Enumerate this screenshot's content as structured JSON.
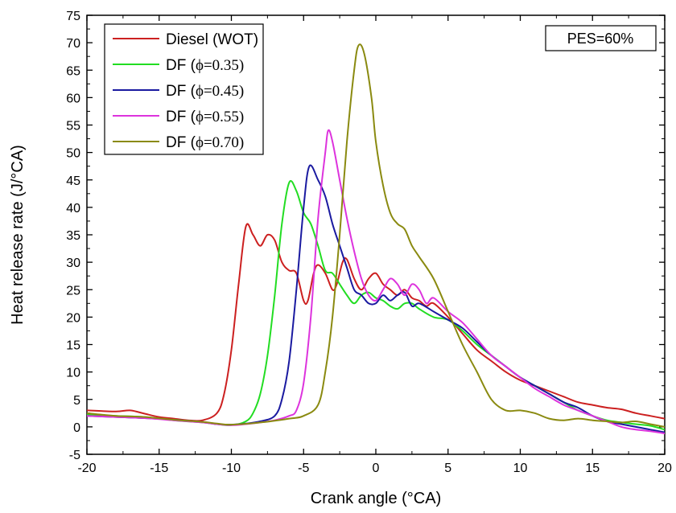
{
  "chart_data": {
    "type": "line",
    "title": "",
    "xlabel": "Crank angle (°CA)",
    "ylabel": "Heat release rate (J/°CA)",
    "xlim": [
      -20,
      20
    ],
    "ylim": [
      -5,
      75
    ],
    "x_ticks": [
      -20,
      -15,
      -10,
      -5,
      0,
      5,
      10,
      15,
      20
    ],
    "y_ticks": [
      -5,
      0,
      5,
      10,
      15,
      20,
      25,
      30,
      35,
      40,
      45,
      50,
      55,
      60,
      65,
      70,
      75
    ],
    "grid": false,
    "legend_position": "top-left",
    "annotation": "PES=60%",
    "series": [
      {
        "name_prefix": "Diesel (WOT)",
        "name_suffix": "",
        "color": "#cc2020",
        "points": [
          [
            -20,
            3.0
          ],
          [
            -18,
            2.8
          ],
          [
            -17,
            3.0
          ],
          [
            -16,
            2.4
          ],
          [
            -15,
            1.8
          ],
          [
            -14,
            1.5
          ],
          [
            -13,
            1.2
          ],
          [
            -12,
            1.2
          ],
          [
            -11,
            2.5
          ],
          [
            -10.5,
            6
          ],
          [
            -10,
            14
          ],
          [
            -9.5,
            26
          ],
          [
            -9,
            36.5
          ],
          [
            -8.5,
            35
          ],
          [
            -8,
            33
          ],
          [
            -7.5,
            35
          ],
          [
            -7,
            34
          ],
          [
            -6.5,
            30
          ],
          [
            -6,
            28.5
          ],
          [
            -5.5,
            28
          ],
          [
            -5,
            23
          ],
          [
            -4.7,
            23
          ],
          [
            -4.3,
            28
          ],
          [
            -4,
            29.5
          ],
          [
            -3.5,
            28
          ],
          [
            -3,
            25
          ],
          [
            -2.7,
            26
          ],
          [
            -2.3,
            30
          ],
          [
            -2,
            30.5
          ],
          [
            -1.5,
            27
          ],
          [
            -1,
            25
          ],
          [
            -0.5,
            27
          ],
          [
            0,
            28
          ],
          [
            0.5,
            26
          ],
          [
            1,
            25
          ],
          [
            1.5,
            24
          ],
          [
            2,
            25
          ],
          [
            2.5,
            23.5
          ],
          [
            3,
            23
          ],
          [
            3.5,
            22
          ],
          [
            4,
            22.5
          ],
          [
            5,
            20
          ],
          [
            6,
            17
          ],
          [
            7,
            14
          ],
          [
            8,
            12
          ],
          [
            9,
            10
          ],
          [
            10,
            8.5
          ],
          [
            11,
            7.5
          ],
          [
            12,
            6.5
          ],
          [
            13,
            5.5
          ],
          [
            14,
            4.5
          ],
          [
            15,
            4
          ],
          [
            16,
            3.5
          ],
          [
            17,
            3.2
          ],
          [
            18,
            2.5
          ],
          [
            19,
            2
          ],
          [
            20,
            1.5
          ]
        ]
      },
      {
        "name_prefix": "DF (",
        "name_suffix": "ϕ=0.35)",
        "color": "#22dd22",
        "points": [
          [
            -20,
            2.2
          ],
          [
            -18,
            2.0
          ],
          [
            -16,
            1.8
          ],
          [
            -14,
            1.2
          ],
          [
            -12,
            0.8
          ],
          [
            -11,
            0.5
          ],
          [
            -10,
            0.3
          ],
          [
            -9,
            1
          ],
          [
            -8.5,
            2.5
          ],
          [
            -8,
            6
          ],
          [
            -7.5,
            13
          ],
          [
            -7,
            24
          ],
          [
            -6.5,
            37
          ],
          [
            -6,
            44.5
          ],
          [
            -5.5,
            43
          ],
          [
            -5,
            39
          ],
          [
            -4.5,
            37
          ],
          [
            -4,
            33
          ],
          [
            -3.5,
            28.5
          ],
          [
            -3,
            28
          ],
          [
            -2.5,
            26
          ],
          [
            -2,
            24
          ],
          [
            -1.5,
            22.5
          ],
          [
            -1,
            24
          ],
          [
            -0.5,
            24.5
          ],
          [
            0,
            23.5
          ],
          [
            0.5,
            23
          ],
          [
            1,
            22
          ],
          [
            1.5,
            21.5
          ],
          [
            2,
            22.5
          ],
          [
            2.5,
            22.5
          ],
          [
            3,
            21.5
          ],
          [
            4,
            20
          ],
          [
            5,
            19.5
          ],
          [
            6,
            17.5
          ],
          [
            7,
            15
          ],
          [
            8,
            13
          ],
          [
            9,
            11
          ],
          [
            10,
            9
          ],
          [
            11,
            7.5
          ],
          [
            12,
            6
          ],
          [
            13,
            4.5
          ],
          [
            14,
            3
          ],
          [
            15,
            2
          ],
          [
            16,
            1.2
          ],
          [
            17,
            0.8
          ],
          [
            18,
            0.5
          ],
          [
            19,
            0.2
          ],
          [
            20,
            -0.5
          ]
        ]
      },
      {
        "name_prefix": "DF (",
        "name_suffix": "ϕ=0.45)",
        "color": "#1a1aa0",
        "points": [
          [
            -20,
            2.0
          ],
          [
            -18,
            1.8
          ],
          [
            -16,
            1.6
          ],
          [
            -14,
            1.3
          ],
          [
            -12,
            0.9
          ],
          [
            -11,
            0.5
          ],
          [
            -10,
            0.4
          ],
          [
            -9,
            0.6
          ],
          [
            -8,
            1
          ],
          [
            -7,
            2
          ],
          [
            -6.5,
            5
          ],
          [
            -6,
            12
          ],
          [
            -5.5,
            25
          ],
          [
            -5,
            40
          ],
          [
            -4.6,
            47.5
          ],
          [
            -4,
            45
          ],
          [
            -3.5,
            42
          ],
          [
            -3,
            37
          ],
          [
            -2.5,
            33
          ],
          [
            -2,
            29
          ],
          [
            -1.5,
            25
          ],
          [
            -1,
            24
          ],
          [
            -0.5,
            22.5
          ],
          [
            0,
            22.5
          ],
          [
            0.5,
            24
          ],
          [
            1,
            23
          ],
          [
            1.5,
            24
          ],
          [
            2,
            24.5
          ],
          [
            2.5,
            22
          ],
          [
            3,
            22.5
          ],
          [
            4,
            21
          ],
          [
            5,
            19.5
          ],
          [
            6,
            18
          ],
          [
            7,
            15.5
          ],
          [
            8,
            13
          ],
          [
            9,
            11
          ],
          [
            10,
            9
          ],
          [
            11,
            7.5
          ],
          [
            12,
            6
          ],
          [
            13,
            4.5
          ],
          [
            14,
            3.5
          ],
          [
            15,
            2
          ],
          [
            16,
            1
          ],
          [
            17,
            0.5
          ],
          [
            18,
            0
          ],
          [
            19,
            -0.5
          ],
          [
            20,
            -1
          ]
        ]
      },
      {
        "name_prefix": "DF (",
        "name_suffix": "ϕ=0.55)",
        "color": "#dd33dd",
        "points": [
          [
            -20,
            2.0
          ],
          [
            -18,
            1.8
          ],
          [
            -16,
            1.6
          ],
          [
            -14,
            1.2
          ],
          [
            -12,
            0.8
          ],
          [
            -11,
            0.5
          ],
          [
            -10,
            0.3
          ],
          [
            -9,
            0.5
          ],
          [
            -8,
            0.8
          ],
          [
            -7,
            1.2
          ],
          [
            -6,
            2
          ],
          [
            -5.5,
            3
          ],
          [
            -5,
            8
          ],
          [
            -4.5,
            20
          ],
          [
            -4,
            38
          ],
          [
            -3.5,
            50
          ],
          [
            -3.3,
            54
          ],
          [
            -3,
            52
          ],
          [
            -2.5,
            45
          ],
          [
            -2,
            38
          ],
          [
            -1.5,
            32
          ],
          [
            -1,
            27
          ],
          [
            -0.5,
            24
          ],
          [
            0,
            23
          ],
          [
            0.5,
            25
          ],
          [
            1,
            27
          ],
          [
            1.5,
            26
          ],
          [
            2,
            24
          ],
          [
            2.5,
            26
          ],
          [
            3,
            25
          ],
          [
            3.5,
            22.5
          ],
          [
            4,
            23.5
          ],
          [
            5,
            21
          ],
          [
            6,
            19
          ],
          [
            7,
            16
          ],
          [
            8,
            13
          ],
          [
            9,
            11
          ],
          [
            10,
            9
          ],
          [
            11,
            7
          ],
          [
            12,
            5.5
          ],
          [
            13,
            4
          ],
          [
            14,
            3
          ],
          [
            15,
            2
          ],
          [
            16,
            1
          ],
          [
            17,
            0
          ],
          [
            18,
            -0.5
          ],
          [
            19,
            -0.8
          ],
          [
            20,
            -1.2
          ]
        ]
      },
      {
        "name_prefix": "DF (",
        "name_suffix": "ϕ=0.70)",
        "color": "#8a8a10",
        "points": [
          [
            -20,
            2.5
          ],
          [
            -18,
            2.0
          ],
          [
            -16,
            1.8
          ],
          [
            -14,
            1.3
          ],
          [
            -12,
            0.9
          ],
          [
            -11,
            0.6
          ],
          [
            -10,
            0.4
          ],
          [
            -8,
            0.8
          ],
          [
            -6,
            1.5
          ],
          [
            -5,
            2
          ],
          [
            -4,
            4
          ],
          [
            -3.5,
            10
          ],
          [
            -3,
            20
          ],
          [
            -2.5,
            35
          ],
          [
            -2,
            52
          ],
          [
            -1.5,
            65
          ],
          [
            -1.2,
            69.5
          ],
          [
            -0.8,
            68
          ],
          [
            -0.3,
            60
          ],
          [
            0,
            52
          ],
          [
            0.5,
            44
          ],
          [
            1,
            39
          ],
          [
            1.5,
            37
          ],
          [
            2,
            36
          ],
          [
            2.5,
            33
          ],
          [
            3,
            31
          ],
          [
            4,
            27
          ],
          [
            5,
            21
          ],
          [
            6,
            15
          ],
          [
            7,
            10
          ],
          [
            8,
            5
          ],
          [
            9,
            3
          ],
          [
            10,
            3
          ],
          [
            11,
            2.5
          ],
          [
            12,
            1.5
          ],
          [
            13,
            1.2
          ],
          [
            14,
            1.5
          ],
          [
            15,
            1.2
          ],
          [
            16,
            1
          ],
          [
            17,
            0.8
          ],
          [
            18,
            1
          ],
          [
            19,
            0.5
          ],
          [
            20,
            0
          ]
        ]
      }
    ]
  }
}
